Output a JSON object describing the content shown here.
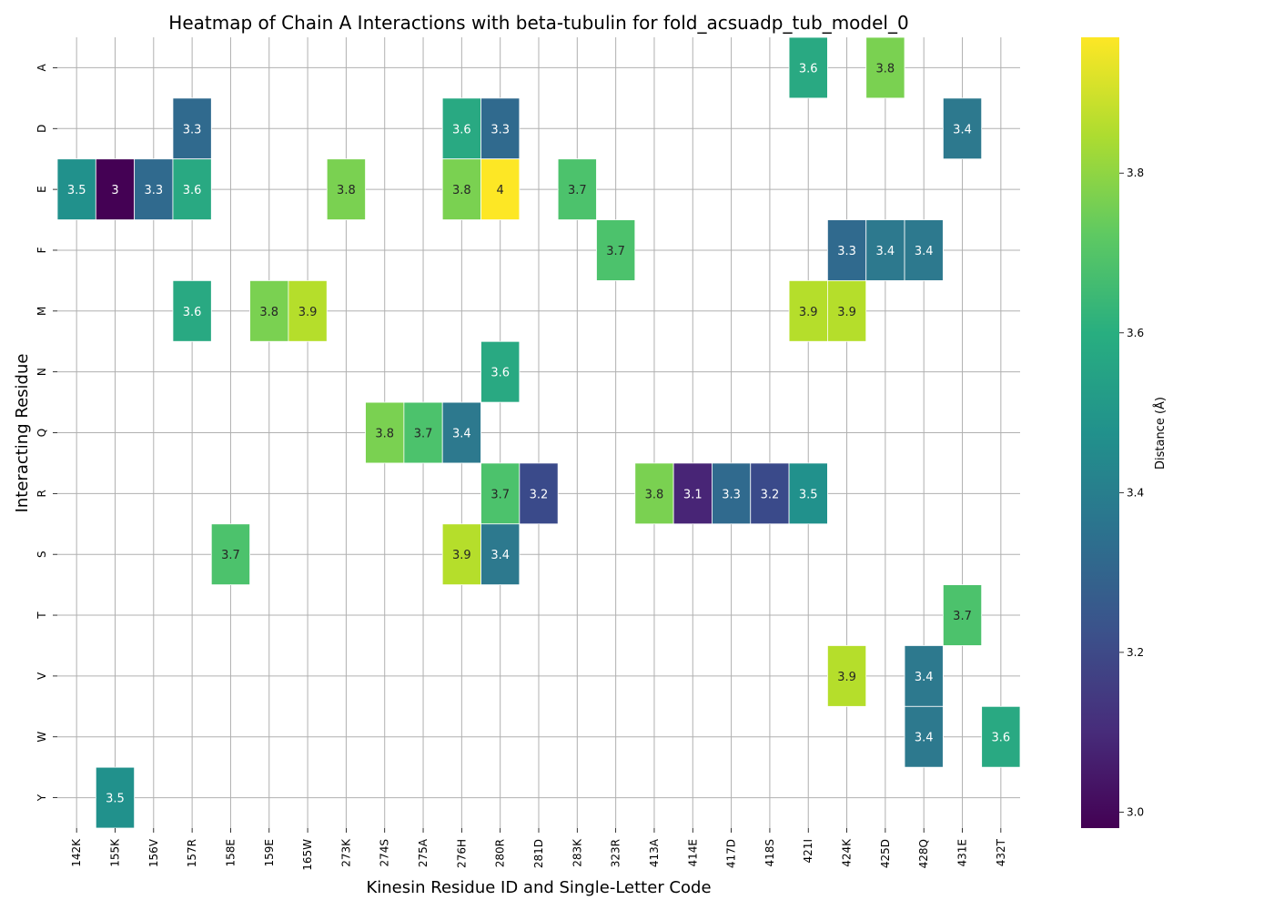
{
  "chart_data": {
    "type": "heatmap",
    "title": "Heatmap of Chain A Interactions with beta-tubulin for fold_acsuadp_tub_model_0",
    "xlabel": "Kinesin Residue ID and Single-Letter Code",
    "ylabel": "Interacting Residue",
    "x_categories": [
      "142K",
      "155K",
      "156V",
      "157R",
      "158E",
      "159E",
      "165W",
      "273K",
      "274S",
      "275A",
      "276H",
      "280R",
      "281D",
      "283K",
      "323R",
      "413A",
      "414E",
      "417D",
      "418S",
      "421I",
      "424K",
      "425D",
      "428Q",
      "431E",
      "432T"
    ],
    "y_categories": [
      "A",
      "D",
      "E",
      "F",
      "M",
      "N",
      "Q",
      "R",
      "S",
      "T",
      "V",
      "W",
      "Y"
    ],
    "cells": [
      {
        "x": "421I",
        "y": "A",
        "value": 3.6
      },
      {
        "x": "425D",
        "y": "A",
        "value": 3.8
      },
      {
        "x": "157R",
        "y": "D",
        "value": 3.3
      },
      {
        "x": "276H",
        "y": "D",
        "value": 3.6
      },
      {
        "x": "280R",
        "y": "D",
        "value": 3.3
      },
      {
        "x": "431E",
        "y": "D",
        "value": 3.4
      },
      {
        "x": "142K",
        "y": "E",
        "value": 3.5
      },
      {
        "x": "155K",
        "y": "E",
        "value": 3.0
      },
      {
        "x": "156V",
        "y": "E",
        "value": 3.3
      },
      {
        "x": "157R",
        "y": "E",
        "value": 3.6
      },
      {
        "x": "273K",
        "y": "E",
        "value": 3.8
      },
      {
        "x": "276H",
        "y": "E",
        "value": 3.8
      },
      {
        "x": "280R",
        "y": "E",
        "value": 4.0
      },
      {
        "x": "283K",
        "y": "E",
        "value": 3.7
      },
      {
        "x": "323R",
        "y": "F",
        "value": 3.7
      },
      {
        "x": "424K",
        "y": "F",
        "value": 3.3
      },
      {
        "x": "425D",
        "y": "F",
        "value": 3.4
      },
      {
        "x": "428Q",
        "y": "F",
        "value": 3.4
      },
      {
        "x": "157R",
        "y": "M",
        "value": 3.6
      },
      {
        "x": "159E",
        "y": "M",
        "value": 3.8
      },
      {
        "x": "165W",
        "y": "M",
        "value": 3.9
      },
      {
        "x": "421I",
        "y": "M",
        "value": 3.9
      },
      {
        "x": "424K",
        "y": "M",
        "value": 3.9
      },
      {
        "x": "280R",
        "y": "N",
        "value": 3.6
      },
      {
        "x": "274S",
        "y": "Q",
        "value": 3.8
      },
      {
        "x": "275A",
        "y": "Q",
        "value": 3.7
      },
      {
        "x": "276H",
        "y": "Q",
        "value": 3.4
      },
      {
        "x": "280R",
        "y": "R",
        "value": 3.7
      },
      {
        "x": "281D",
        "y": "R",
        "value": 3.2
      },
      {
        "x": "413A",
        "y": "R",
        "value": 3.8
      },
      {
        "x": "414E",
        "y": "R",
        "value": 3.1
      },
      {
        "x": "417D",
        "y": "R",
        "value": 3.3
      },
      {
        "x": "418S",
        "y": "R",
        "value": 3.2
      },
      {
        "x": "421I",
        "y": "R",
        "value": 3.5
      },
      {
        "x": "158E",
        "y": "S",
        "value": 3.7
      },
      {
        "x": "276H",
        "y": "S",
        "value": 3.9
      },
      {
        "x": "280R",
        "y": "S",
        "value": 3.4
      },
      {
        "x": "431E",
        "y": "T",
        "value": 3.7
      },
      {
        "x": "424K",
        "y": "V",
        "value": 3.9
      },
      {
        "x": "428Q",
        "y": "V",
        "value": 3.4
      },
      {
        "x": "428Q",
        "y": "W",
        "value": 3.4
      },
      {
        "x": "432T",
        "y": "W",
        "value": 3.6
      },
      {
        "x": "155K",
        "y": "Y",
        "value": 3.5
      }
    ],
    "cell_colors": {
      "3.0": "#440154",
      "3.1": "#482576",
      "3.2": "#3a4a8a",
      "3.3": "#306a8e",
      "3.4": "#2d798e",
      "3.5": "#21918c",
      "3.6": "#29a982",
      "3.7": "#4cc26c",
      "3.8": "#7ad151",
      "3.9": "#b5de2b",
      "4.0": "#fde725"
    },
    "colorbar": {
      "label": "Distance (Å)",
      "ticks": [
        "3.0",
        "3.2",
        "3.4",
        "3.6",
        "3.8"
      ],
      "vmin": 2.98,
      "vmax": 3.97,
      "colormap": "viridis"
    },
    "grid": true
  }
}
